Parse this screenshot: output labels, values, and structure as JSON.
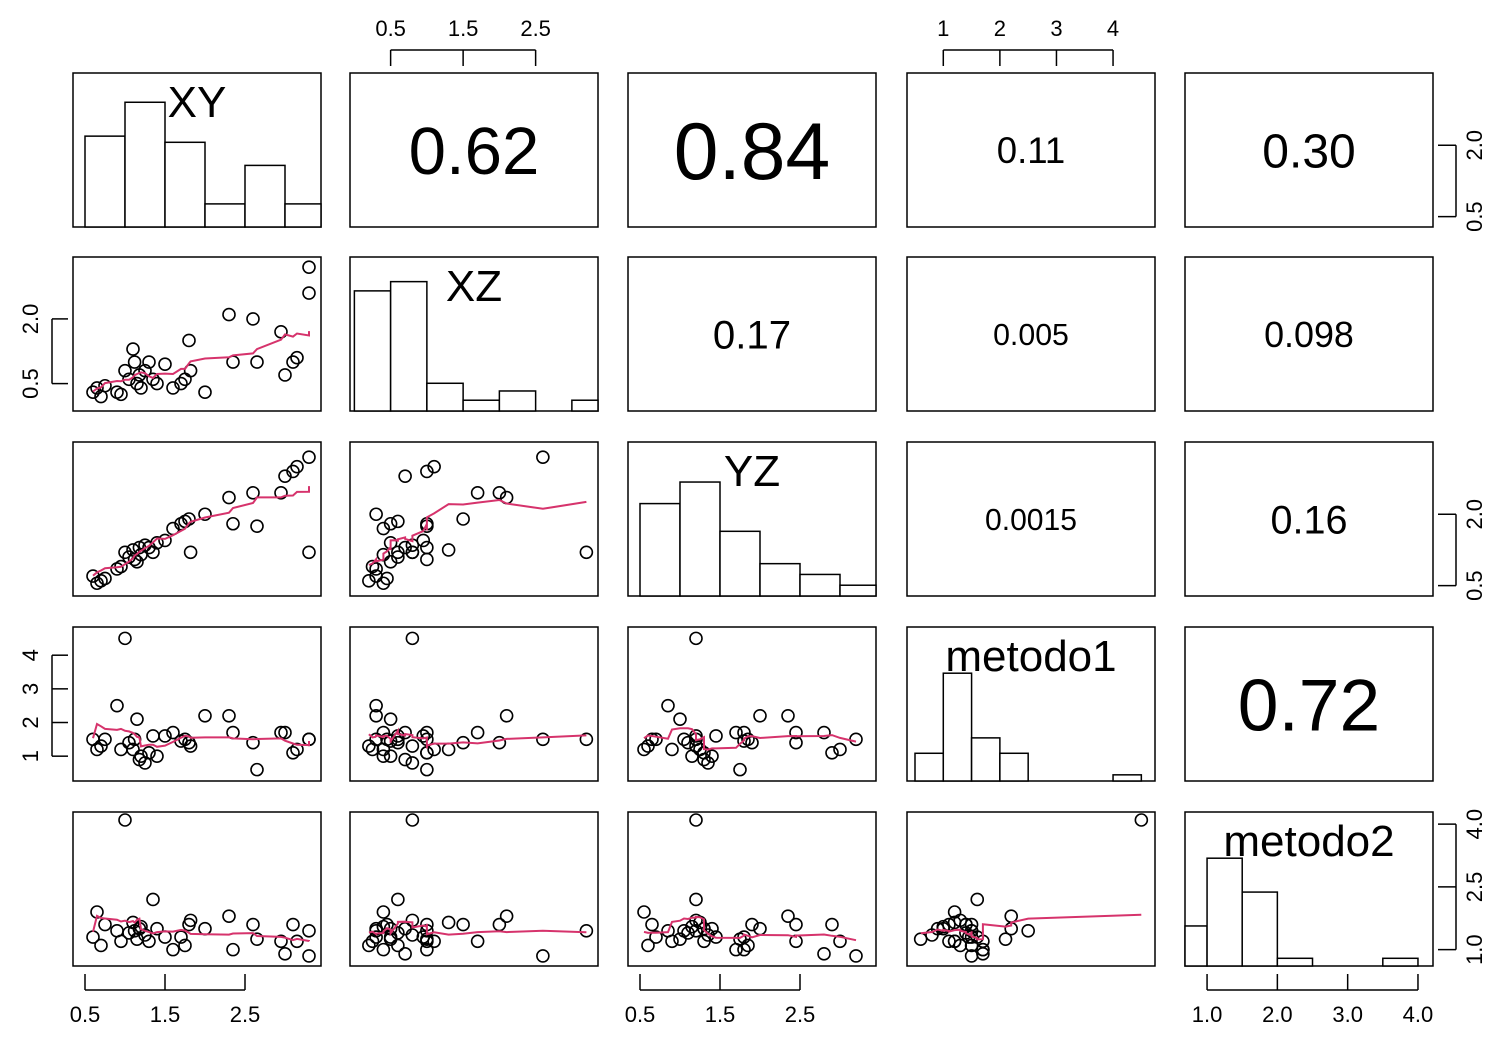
{
  "variables": [
    "XY",
    "XZ",
    "YZ",
    "metodo1",
    "metodo2"
  ],
  "colors": {
    "frame": "#000000",
    "hist_fill": "#ffffff",
    "smooth_line": "#d6336c",
    "points": "#000000"
  },
  "axes": {
    "top": [
      {
        "column": 1,
        "ticks": [
          "0.5",
          "1.5",
          "2.5"
        ]
      },
      {
        "column": 3,
        "ticks": [
          "1",
          "2",
          "3",
          "4"
        ]
      }
    ],
    "bottom": [
      {
        "column": 0,
        "ticks": [
          "0.5",
          "1.5",
          "2.5"
        ]
      },
      {
        "column": 2,
        "ticks": [
          "0.5",
          "1.5",
          "2.5"
        ]
      },
      {
        "column": 4,
        "ticks": [
          "1.0",
          "2.0",
          "3.0",
          "4.0"
        ]
      }
    ],
    "left": [
      {
        "row": 1,
        "ticks": [
          "0.5",
          "2.0"
        ]
      },
      {
        "row": 3,
        "ticks": [
          "1",
          "2",
          "3",
          "4"
        ]
      }
    ],
    "right": [
      {
        "row": 0,
        "ticks": [
          "0.5",
          "2.0"
        ]
      },
      {
        "row": 2,
        "ticks": [
          "0.5",
          "2.0"
        ]
      },
      {
        "row": 4,
        "ticks": [
          "1.0",
          "2.5",
          "4.0"
        ]
      }
    ]
  },
  "chart_data": {
    "type": "scatter",
    "subtype": "pairs-matrix",
    "variables": [
      "XY",
      "XZ",
      "YZ",
      "metodo1",
      "metodo2"
    ],
    "ranges": {
      "XY": [
        0.45,
        3.35
      ],
      "XZ": [
        0.05,
        3.25
      ],
      "YZ": [
        0.45,
        3.35
      ],
      "metodo1": [
        0.5,
        4.6
      ],
      "metodo2": [
        0.8,
        4.1
      ]
    },
    "correlations": [
      {
        "row": 0,
        "col": 1,
        "label": "0.62"
      },
      {
        "row": 0,
        "col": 2,
        "label": "0.84"
      },
      {
        "row": 0,
        "col": 3,
        "label": "0.11"
      },
      {
        "row": 0,
        "col": 4,
        "label": "0.30"
      },
      {
        "row": 1,
        "col": 2,
        "label": "0.17"
      },
      {
        "row": 1,
        "col": 3,
        "label": "0.005"
      },
      {
        "row": 1,
        "col": 4,
        "label": "0.098"
      },
      {
        "row": 2,
        "col": 3,
        "label": "0.0015"
      },
      {
        "row": 2,
        "col": 4,
        "label": "0.16"
      },
      {
        "row": 3,
        "col": 4,
        "label": "0.72"
      }
    ],
    "histograms": [
      {
        "var": "XY",
        "breaks": [
          0.5,
          1.0,
          1.5,
          2.0,
          2.5,
          3.0,
          3.5
        ],
        "heights": [
          0.59,
          0.81,
          0.55,
          0.15,
          0.4,
          0.15
        ]
      },
      {
        "var": "XZ",
        "breaks": [
          0.0,
          0.5,
          1.0,
          1.5,
          2.0,
          2.5,
          3.0,
          3.5
        ],
        "heights": [
          0.78,
          0.84,
          0.18,
          0.07,
          0.13,
          0.0,
          0.07
        ]
      },
      {
        "var": "YZ",
        "breaks": [
          0.5,
          1.0,
          1.5,
          2.0,
          2.5,
          3.0,
          3.5
        ],
        "heights": [
          0.6,
          0.74,
          0.42,
          0.21,
          0.14,
          0.07
        ]
      },
      {
        "var": "metodo1",
        "breaks": [
          0.5,
          1.0,
          1.5,
          2.0,
          2.5,
          3.0,
          3.5,
          4.0,
          4.5
        ],
        "heights": [
          0.18,
          0.7,
          0.28,
          0.18,
          0.0,
          0.0,
          0.0,
          0.04
        ]
      },
      {
        "var": "metodo2",
        "breaks": [
          0.5,
          1.0,
          1.5,
          2.0,
          2.5,
          3.0,
          3.5,
          4.0
        ],
        "heights": [
          0.26,
          0.7,
          0.48,
          0.05,
          0.0,
          0.0,
          0.05
        ]
      }
    ],
    "observations": [
      [
        0.6,
        0.3,
        0.7,
        1.5,
        1.3
      ],
      [
        0.65,
        0.4,
        0.55,
        1.2,
        1.9
      ],
      [
        0.7,
        0.2,
        0.6,
        1.3,
        1.1
      ],
      [
        0.75,
        0.45,
        0.65,
        1.5,
        1.6
      ],
      [
        0.9,
        0.3,
        0.85,
        2.5,
        1.45
      ],
      [
        0.95,
        0.25,
        0.9,
        1.2,
        1.2
      ],
      [
        1.0,
        0.8,
        1.2,
        4.5,
        4.1
      ],
      [
        1.05,
        0.6,
        1.1,
        1.4,
        1.4
      ],
      [
        1.1,
        1.3,
        1.25,
        1.2,
        1.65
      ],
      [
        1.12,
        1.0,
        1.05,
        1.5,
        1.45
      ],
      [
        1.15,
        0.5,
        1.0,
        2.1,
        1.25
      ],
      [
        1.18,
        0.7,
        1.3,
        0.9,
        1.5
      ],
      [
        1.2,
        0.4,
        1.15,
        1.0,
        1.55
      ],
      [
        1.25,
        0.8,
        1.35,
        0.8,
        1.35
      ],
      [
        1.3,
        1.0,
        1.3,
        1.1,
        1.2
      ],
      [
        1.35,
        0.6,
        1.2,
        1.6,
        2.2
      ],
      [
        1.4,
        0.5,
        1.4,
        1.0,
        1.5
      ],
      [
        1.5,
        0.95,
        1.45,
        1.6,
        1.3
      ],
      [
        1.6,
        0.4,
        1.7,
        1.7,
        1.0
      ],
      [
        1.7,
        0.5,
        1.8,
        1.45,
        1.3
      ],
      [
        1.75,
        0.6,
        1.85,
        1.5,
        1.1
      ],
      [
        1.8,
        1.5,
        1.9,
        1.4,
        1.6
      ],
      [
        1.82,
        0.8,
        1.2,
        1.3,
        1.7
      ],
      [
        2.0,
        0.3,
        2.0,
        2.2,
        1.5
      ],
      [
        2.3,
        2.1,
        2.35,
        2.2,
        1.8
      ],
      [
        2.35,
        1.0,
        1.8,
        1.7,
        1.0
      ],
      [
        2.6,
        2.0,
        2.45,
        1.4,
        1.6
      ],
      [
        2.65,
        1.0,
        1.75,
        0.6,
        1.25
      ],
      [
        2.95,
        1.7,
        2.45,
        1.7,
        1.2
      ],
      [
        3.0,
        0.7,
        2.8,
        1.7,
        0.9
      ],
      [
        3.1,
        1.0,
        2.9,
        1.1,
        1.6
      ],
      [
        3.15,
        1.1,
        3.0,
        1.2,
        1.2
      ],
      [
        3.3,
        2.6,
        3.2,
        1.5,
        0.85
      ],
      [
        3.3,
        3.2,
        1.2,
        1.5,
        1.45
      ]
    ]
  }
}
